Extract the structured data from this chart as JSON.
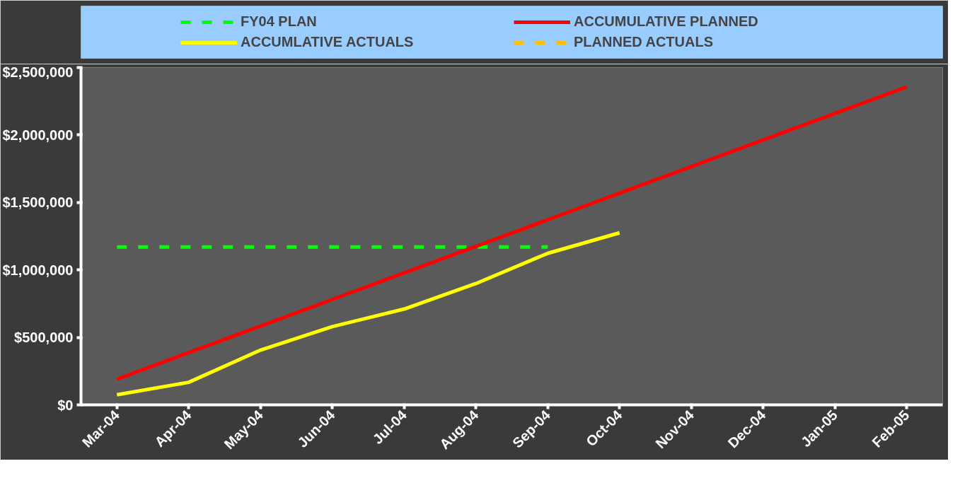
{
  "chart_data": {
    "type": "line",
    "categories": [
      "Mar-04",
      "Apr-04",
      "May-04",
      "Jun-04",
      "Jul-04",
      "Aug-04",
      "Sep-04",
      "Oct-04",
      "Nov-04",
      "Dec-04",
      "Jan-05",
      "Feb-05"
    ],
    "series": [
      {
        "name": "FY04 PLAN",
        "color": "#00ff00",
        "line_style": "dashed",
        "values": [
          1170000,
          1170000,
          1170000,
          1170000,
          1170000,
          1170000,
          1170000,
          null,
          null,
          null,
          null,
          null
        ]
      },
      {
        "name": "ACCUMULATIVE PLANNED",
        "color": "#ff0000",
        "line_style": "solid",
        "values": [
          190000,
          387000,
          584000,
          781000,
          978000,
          1175000,
          1372000,
          1569000,
          1766000,
          1963000,
          2160000,
          2357000
        ]
      },
      {
        "name": "ACCUMLATIVE ACTUALS",
        "color": "#ffff00",
        "line_style": "solid",
        "values": [
          75000,
          167000,
          406000,
          580000,
          710000,
          899000,
          1123000,
          1275000,
          null,
          null,
          null,
          null
        ]
      },
      {
        "name": "PLANNED ACTUALS",
        "color": "#ffc000",
        "line_style": "dashed",
        "values": [
          null,
          null,
          null,
          null,
          null,
          null,
          null,
          null,
          null,
          null,
          null,
          null
        ]
      }
    ],
    "ylim": [
      0,
      2500000
    ],
    "yticks": [
      {
        "value": 0,
        "label": "$0"
      },
      {
        "value": 500000,
        "label": "$500,000"
      },
      {
        "value": 1000000,
        "label": "$1,000,000"
      },
      {
        "value": 1500000,
        "label": "$1,500,000"
      },
      {
        "value": 2000000,
        "label": "$2,000,000"
      },
      {
        "value": 2500000,
        "label": "$2,500,000"
      }
    ],
    "grid": false,
    "legend": "top",
    "marker": "none"
  }
}
